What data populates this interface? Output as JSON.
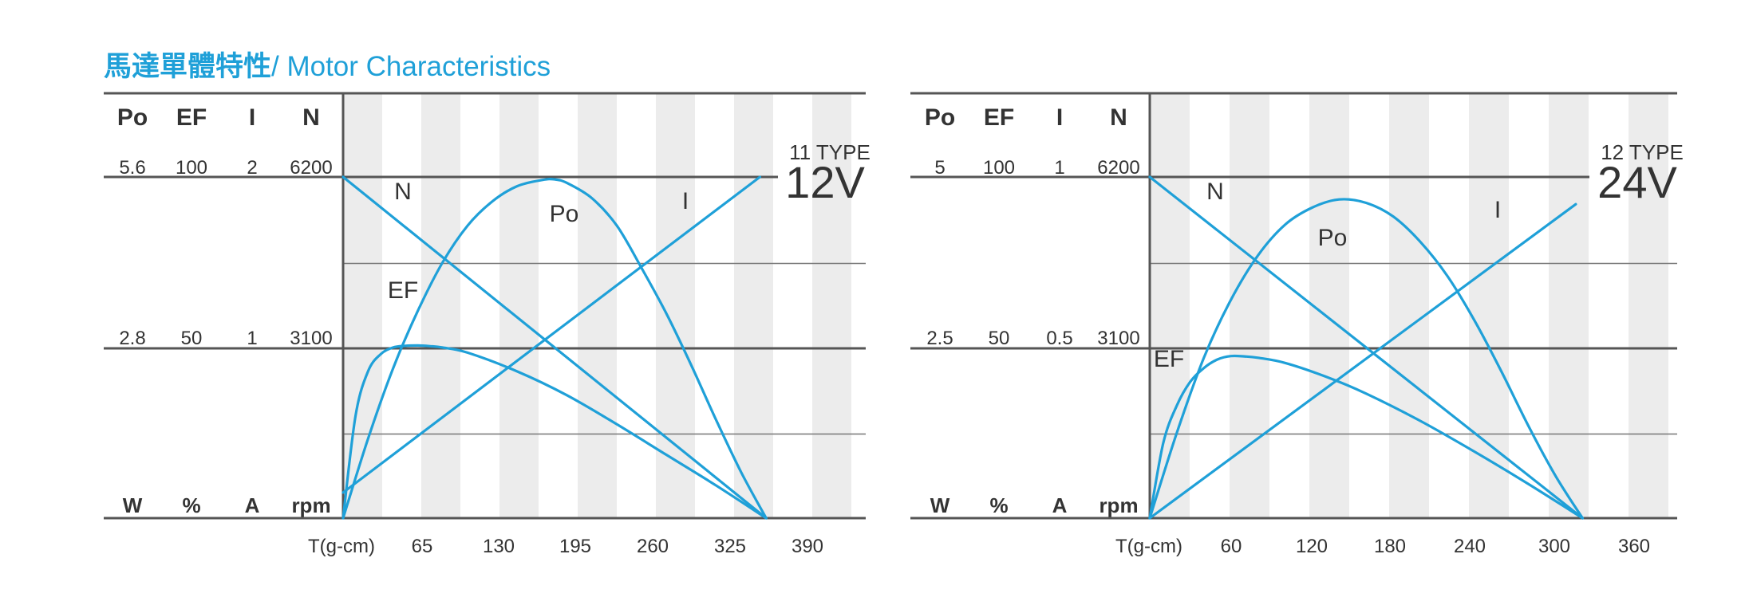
{
  "page": {
    "title_cn": "馬達單體特性",
    "title_en": "/ Motor Characteristics",
    "curve_color": "#1fa0d8",
    "stripe_color": "#ececec",
    "axis_color": "#555555"
  },
  "chart_data": [
    {
      "type": "line",
      "type_label": "11 TYPE",
      "voltage_label": "12V",
      "xlabel": "T(g-cm)",
      "x_ticks": [
        "65",
        "130",
        "195",
        "260",
        "325",
        "390"
      ],
      "xlim": [
        0,
        420
      ],
      "column_headers": [
        "Po",
        "EF",
        "I",
        "N"
      ],
      "unit_labels": [
        "W",
        "%",
        "A",
        "rpm"
      ],
      "scale_rows": [
        [
          "5.6",
          "100",
          "2",
          "6200"
        ],
        [
          "2.8",
          "50",
          "1",
          "3100"
        ]
      ],
      "series": [
        {
          "name": "N",
          "unit": "rpm",
          "x": [
            0,
            340
          ],
          "values": [
            6200,
            0
          ]
        },
        {
          "name": "I",
          "unit": "A",
          "x": [
            0,
            335
          ],
          "values": [
            0.15,
            2.0
          ]
        },
        {
          "name": "Po",
          "unit": "W",
          "x": [
            0,
            20,
            40,
            60,
            80,
            100,
            120,
            140,
            160,
            170,
            180,
            200,
            220,
            240,
            260,
            280,
            300,
            320,
            340
          ],
          "values": [
            0,
            1.3,
            2.45,
            3.4,
            4.2,
            4.8,
            5.2,
            5.45,
            5.55,
            5.56,
            5.5,
            5.25,
            4.8,
            4.1,
            3.35,
            2.5,
            1.6,
            0.75,
            0
          ]
        },
        {
          "name": "EF",
          "unit": "%",
          "x": [
            0,
            10,
            20,
            30,
            40,
            50,
            60,
            70,
            80,
            100,
            140,
            180,
            220,
            260,
            300,
            340
          ],
          "values": [
            0,
            30,
            43,
            48,
            50,
            50.5,
            50.6,
            50.4,
            50,
            48.5,
            43,
            36,
            27.5,
            18.5,
            9.5,
            0
          ]
        }
      ],
      "curve_labels": [
        "N",
        "Po",
        "I",
        "EF"
      ]
    },
    {
      "type": "line",
      "type_label": "12 TYPE",
      "voltage_label": "24V",
      "xlabel": "T(g-cm)",
      "x_ticks": [
        "60",
        "120",
        "180",
        "240",
        "300",
        "360"
      ],
      "xlim": [
        0,
        390
      ],
      "column_headers": [
        "Po",
        "EF",
        "I",
        "N"
      ],
      "unit_labels": [
        "W",
        "%",
        "A",
        "rpm"
      ],
      "scale_rows": [
        [
          "5",
          "100",
          "1",
          "6200"
        ],
        [
          "2.5",
          "50",
          "0.5",
          "3100"
        ]
      ],
      "series": [
        {
          "name": "N",
          "unit": "rpm",
          "x": [
            0,
            320
          ],
          "values": [
            6200,
            0
          ]
        },
        {
          "name": "I",
          "unit": "A",
          "x": [
            0,
            315
          ],
          "values": [
            0.0,
            0.92
          ]
        },
        {
          "name": "Po",
          "unit": "W",
          "x": [
            0,
            20,
            40,
            60,
            80,
            100,
            120,
            140,
            160,
            180,
            200,
            220,
            240,
            260,
            280,
            300,
            320
          ],
          "values": [
            0,
            1.25,
            2.35,
            3.2,
            3.85,
            4.3,
            4.55,
            4.67,
            4.62,
            4.42,
            4.05,
            3.55,
            2.9,
            2.15,
            1.35,
            0.62,
            0
          ]
        },
        {
          "name": "EF",
          "unit": "%",
          "x": [
            0,
            10,
            20,
            30,
            40,
            50,
            60,
            70,
            80,
            100,
            130,
            160,
            200,
            240,
            280,
            320
          ],
          "values": [
            0,
            22,
            33,
            40,
            44,
            46.5,
            47.5,
            47.4,
            47,
            45.5,
            41.5,
            36.5,
            28.5,
            19.5,
            10,
            0
          ]
        }
      ],
      "curve_labels": [
        "N",
        "Po",
        "I",
        "EF"
      ]
    }
  ]
}
